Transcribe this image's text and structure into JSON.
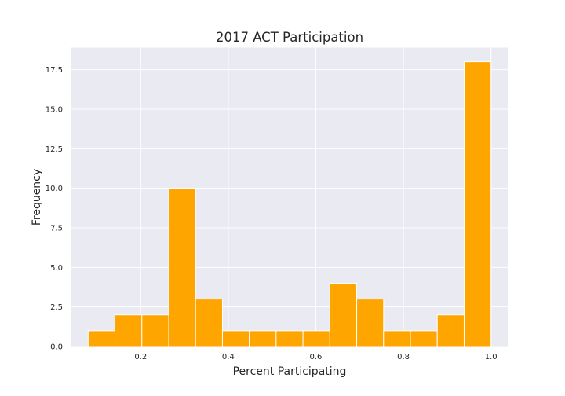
{
  "chart_data": {
    "type": "bar",
    "title": "2017 ACT Participation",
    "xlabel": "Percent Participating",
    "ylabel": "Frequency",
    "xlim": [
      0.04,
      1.04
    ],
    "ylim": [
      0,
      18.9
    ],
    "xticks": [
      0.2,
      0.4,
      0.6,
      0.8,
      1.0
    ],
    "xtick_labels": [
      "0.2",
      "0.4",
      "0.6",
      "0.8",
      "1.0"
    ],
    "yticks": [
      0.0,
      2.5,
      5.0,
      7.5,
      10.0,
      12.5,
      15.0,
      17.5
    ],
    "ytick_labels": [
      "0.0",
      "2.5",
      "5.0",
      "7.5",
      "10.0",
      "12.5",
      "15.0",
      "17.5"
    ],
    "bin_edges": [
      0.08,
      0.1413,
      0.2027,
      0.264,
      0.3253,
      0.3867,
      0.448,
      0.5093,
      0.5707,
      0.632,
      0.6933,
      0.7547,
      0.816,
      0.8773,
      0.9387,
      1.0
    ],
    "counts": [
      1,
      2,
      2,
      10,
      3,
      1,
      1,
      1,
      1,
      4,
      3,
      1,
      1,
      2,
      18
    ],
    "grid": true,
    "colors": {
      "bar": "#ffa500",
      "bar_edge": "#ffffff",
      "plot_background": "#eaeaf2",
      "grid": "#ffffff",
      "text": "#262626"
    }
  }
}
